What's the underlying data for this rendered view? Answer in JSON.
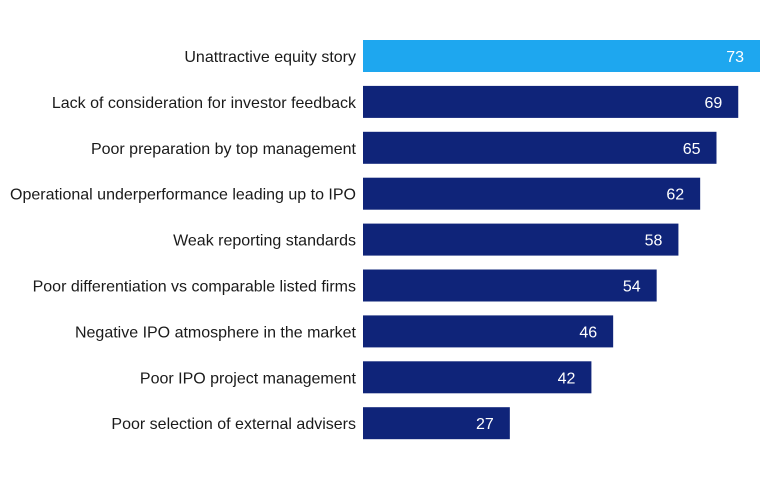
{
  "chart_data": {
    "type": "bar",
    "orientation": "horizontal",
    "title": "",
    "xlabel": "",
    "ylabel": "",
    "categories": [
      "Unattractive equity story",
      "Lack of consideration for investor feedback",
      "Poor preparation by top management",
      "Operational underperformance leading up to IPO",
      "Weak reporting standards",
      "Poor differentiation vs comparable listed firms",
      "Negative IPO atmosphere in the market",
      "Poor IPO project management",
      "Poor selection of external advisers"
    ],
    "values": [
      73,
      69,
      65,
      62,
      58,
      54,
      46,
      42,
      27
    ],
    "xlim": [
      0,
      73
    ],
    "grid": false,
    "data_labels": true,
    "highlight_index": 0,
    "colors": {
      "highlight": "#1EA7EF",
      "default": "#0F2479",
      "value_text": "#FFFFFF",
      "category_text": "#1A1A1A"
    }
  }
}
